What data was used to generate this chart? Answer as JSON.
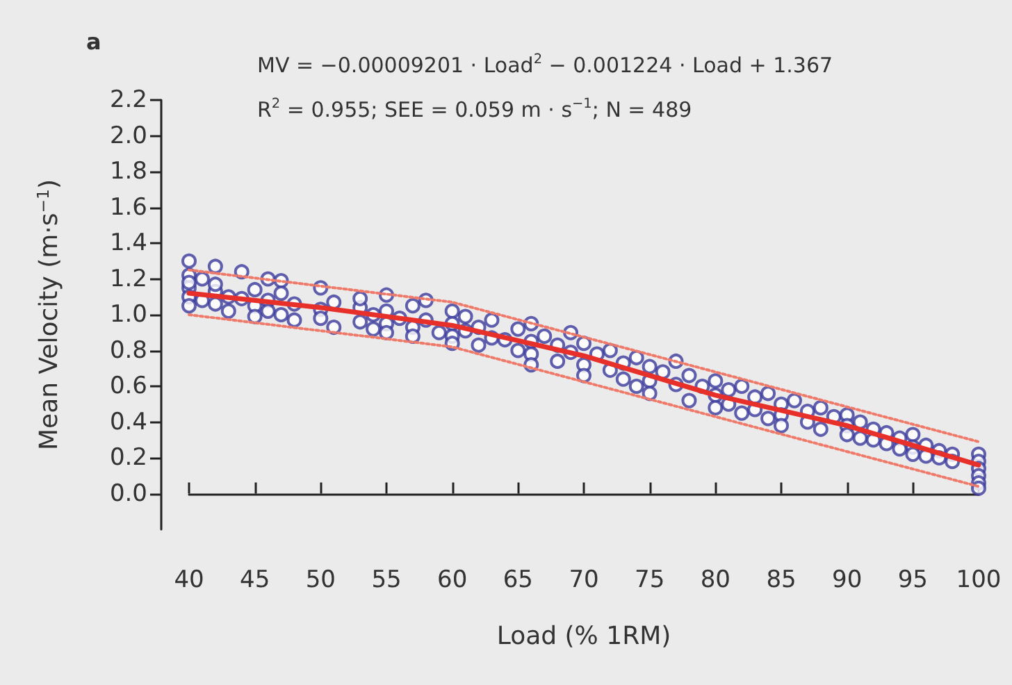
{
  "chart_data": {
    "type": "scatter",
    "xlabel": "Load (% 1RM)",
    "ylabel": "Mean Velocity (m·s$^{−1}$)",
    "annotations": [
      "a",
      "MV = −0.00009201 · Load$^{2}$ − 0.001224 · Load + 1.367",
      "R$^{2}$ = 0.955; SEE = 0.059 m · s$^{−1}$; N = 489"
    ],
    "xlim": [
      40,
      100
    ],
    "xticks": [
      40,
      45,
      50,
      55,
      60,
      65,
      70,
      75,
      80,
      85,
      90,
      95,
      100
    ],
    "ylim": [
      -0.2,
      2.2
    ],
    "yticks": [
      "0.0",
      0.2,
      0.4,
      0.6,
      0.8,
      "1.0",
      1.2,
      1.4,
      1.6,
      1.8,
      "2.0",
      2.2
    ],
    "grid": false,
    "marker": "circle",
    "series": [
      {
        "color": "#3a3a9c",
        "x": [
          40,
          40,
          40,
          40,
          40,
          40,
          41,
          41,
          42,
          42,
          42,
          42,
          43,
          43,
          44,
          44,
          45,
          45,
          45,
          46,
          46,
          46,
          47,
          47,
          47,
          48,
          48,
          50,
          50,
          50,
          51,
          51,
          53,
          53,
          53,
          54,
          54,
          55,
          55,
          55,
          55,
          56,
          57,
          57,
          57,
          58,
          58,
          59,
          60,
          60,
          60,
          60,
          61,
          61,
          62,
          62,
          63,
          63,
          64,
          65,
          65,
          66,
          66,
          66,
          66,
          67,
          68,
          68,
          69,
          69,
          70,
          70,
          70,
          71,
          72,
          72,
          73,
          73,
          74,
          74,
          75,
          75,
          75,
          76,
          77,
          77,
          78,
          78,
          79,
          80,
          80,
          80,
          81,
          81,
          82,
          82,
          83,
          83,
          84,
          84,
          85,
          85,
          85,
          86,
          87,
          87,
          88,
          88,
          89,
          90,
          90,
          90,
          91,
          91,
          92,
          92,
          93,
          93,
          94,
          94,
          95,
          95,
          95,
          96,
          96,
          97,
          97,
          98,
          98,
          100,
          100,
          100,
          100,
          100,
          100
        ],
        "values": [
          1.3,
          1.22,
          1.15,
          1.1,
          1.05,
          1.18,
          1.08,
          1.2,
          1.27,
          1.13,
          1.06,
          1.17,
          1.1,
          1.02,
          1.24,
          1.09,
          1.14,
          1.05,
          0.99,
          1.2,
          1.08,
          1.02,
          1.19,
          1.12,
          1.0,
          1.06,
          0.97,
          1.15,
          1.03,
          0.98,
          1.07,
          0.93,
          1.04,
          0.96,
          1.09,
          1.0,
          0.92,
          1.11,
          1.02,
          0.95,
          0.9,
          0.98,
          1.05,
          0.93,
          0.88,
          1.08,
          0.97,
          0.9,
          1.02,
          0.95,
          0.88,
          0.84,
          0.99,
          0.91,
          0.93,
          0.83,
          0.97,
          0.87,
          0.86,
          0.92,
          0.8,
          0.95,
          0.85,
          0.78,
          0.72,
          0.88,
          0.83,
          0.74,
          0.9,
          0.79,
          0.84,
          0.72,
          0.66,
          0.78,
          0.8,
          0.69,
          0.73,
          0.64,
          0.76,
          0.6,
          0.71,
          0.63,
          0.56,
          0.68,
          0.74,
          0.61,
          0.66,
          0.52,
          0.6,
          0.63,
          0.55,
          0.48,
          0.58,
          0.5,
          0.6,
          0.45,
          0.54,
          0.47,
          0.56,
          0.42,
          0.5,
          0.44,
          0.38,
          0.52,
          0.46,
          0.4,
          0.48,
          0.36,
          0.43,
          0.44,
          0.38,
          0.33,
          0.4,
          0.31,
          0.36,
          0.3,
          0.34,
          0.28,
          0.31,
          0.25,
          0.33,
          0.26,
          0.22,
          0.27,
          0.21,
          0.24,
          0.2,
          0.22,
          0.18,
          0.22,
          0.18,
          0.14,
          0.1,
          0.06,
          0.03
        ]
      },
      {
        "type": "line",
        "color": "#e8302a",
        "line_style": "solid",
        "marker": "none",
        "x": [
          40,
          50,
          60,
          70,
          80,
          90,
          100
        ],
        "values": [
          1.12,
          1.04,
          0.94,
          0.77,
          0.55,
          0.38,
          0.16
        ]
      },
      {
        "type": "line",
        "color": "#f07a6a",
        "line_style": "dotted",
        "marker": "none",
        "x": [
          40,
          60,
          80,
          100
        ],
        "values": [
          1.25,
          1.07,
          0.68,
          0.29
        ]
      },
      {
        "type": "line",
        "color": "#f07a6a",
        "line_style": "dotted",
        "marker": "none",
        "x": [
          40,
          60,
          80,
          100
        ],
        "values": [
          1.0,
          0.82,
          0.43,
          0.04
        ]
      }
    ]
  }
}
